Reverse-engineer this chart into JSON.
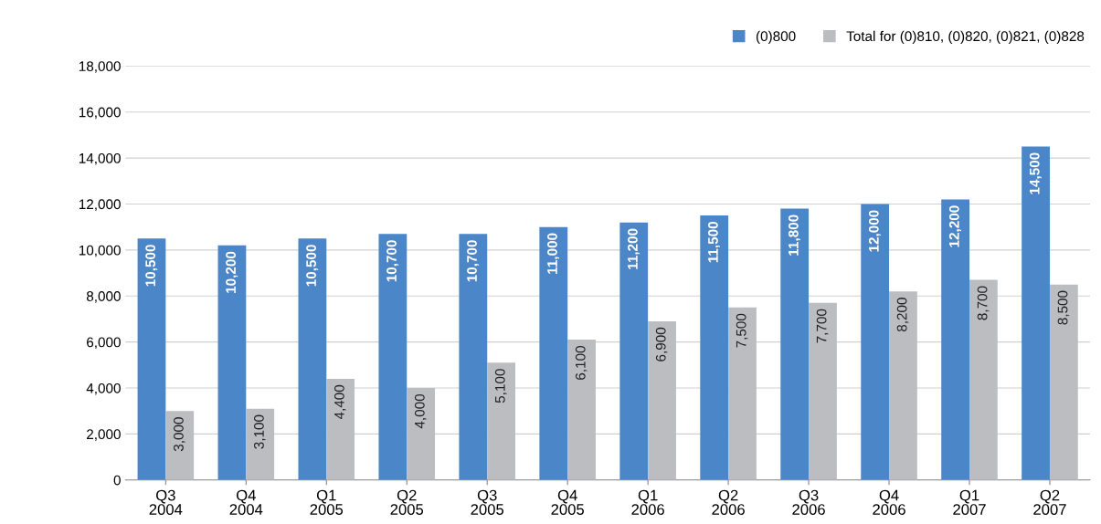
{
  "chart_data": {
    "type": "bar",
    "categories": [
      "Q3\n2004",
      "Q4\n2004",
      "Q1\n2005",
      "Q2\n2005",
      "Q3\n2005",
      "Q4\n2005",
      "Q1\n2006",
      "Q2\n2006",
      "Q3\n2006",
      "Q4\n2006",
      "Q1\n2007",
      "Q2\n2007"
    ],
    "series": [
      {
        "name": "(0)800",
        "color": "#4a86c8",
        "values": [
          10500,
          10200,
          10500,
          10700,
          10700,
          11000,
          11200,
          11500,
          11800,
          12000,
          12200,
          14500
        ],
        "value_labels": [
          "10,500",
          "10,200",
          "10,500",
          "10,700",
          "10,700",
          "11,000",
          "11,200",
          "11,500",
          "11,800",
          "12,000",
          "12,200",
          "14,500"
        ]
      },
      {
        "name": "Total for (0)810, (0)820, (0)821, (0)828",
        "color": "#bcbdc0",
        "values": [
          3000,
          3100,
          4400,
          4000,
          5100,
          6100,
          6900,
          7500,
          7700,
          8200,
          8700,
          8500
        ],
        "value_labels": [
          "3,000",
          "3,100",
          "4,400",
          "4,000",
          "5,100",
          "6,100",
          "6,900",
          "7,500",
          "7,700",
          "8,200",
          "8,700",
          "8,500"
        ]
      }
    ],
    "ylim": [
      0,
      18000
    ],
    "yticks": [
      {
        "value": 0,
        "label": "0"
      },
      {
        "value": 2000,
        "label": "2,000"
      },
      {
        "value": 4000,
        "label": "4,000"
      },
      {
        "value": 6000,
        "label": "6,000"
      },
      {
        "value": 8000,
        "label": "8,000"
      },
      {
        "value": 10000,
        "label": "10,000"
      },
      {
        "value": 12000,
        "label": "12,000"
      },
      {
        "value": 14000,
        "label": "14,000"
      },
      {
        "value": 16000,
        "label": "16,000"
      },
      {
        "value": 18000,
        "label": "18,000"
      }
    ],
    "grid": "y",
    "legend": "top right"
  }
}
